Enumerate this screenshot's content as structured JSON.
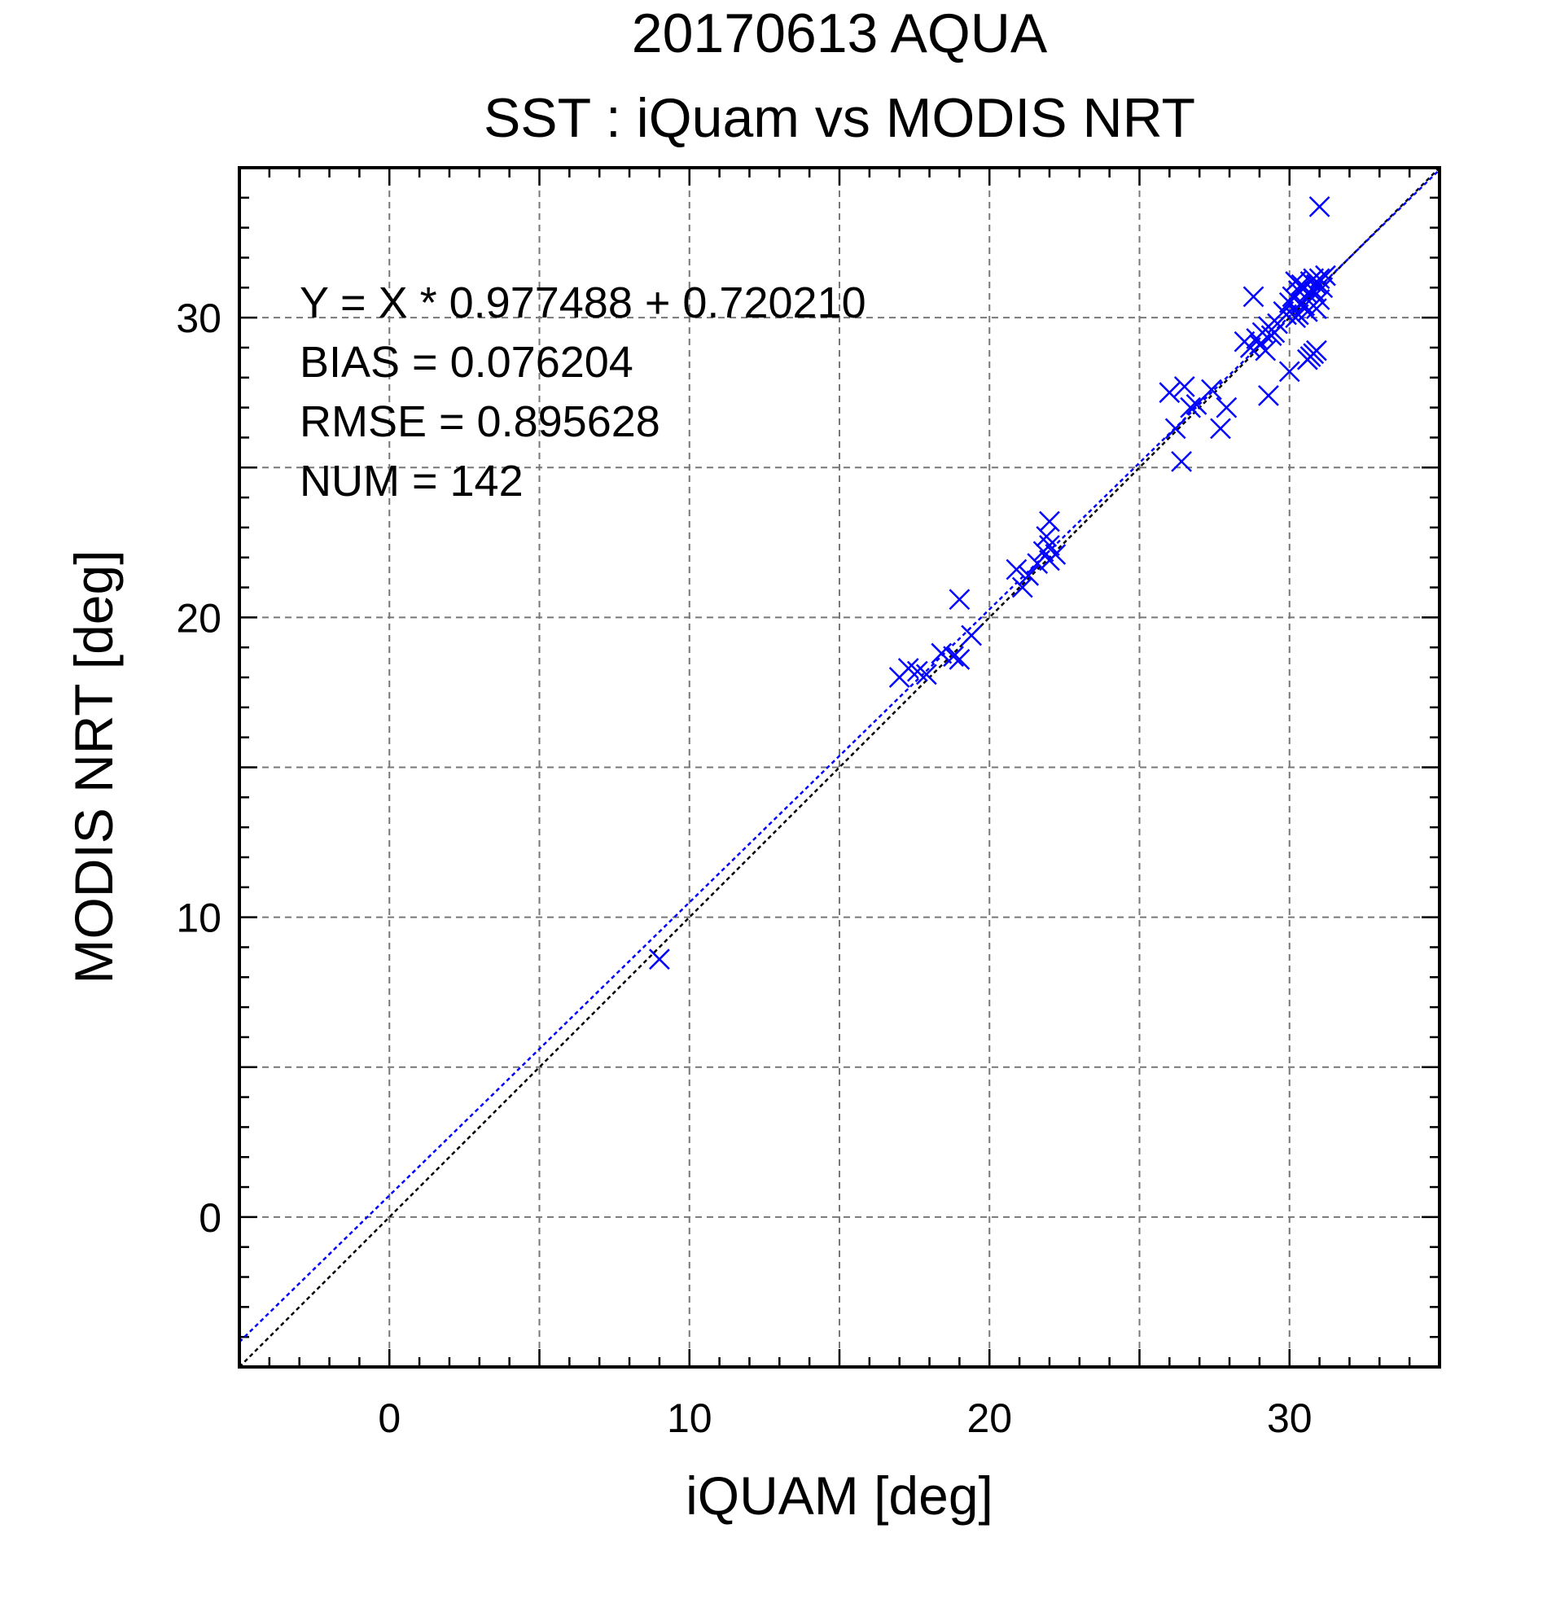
{
  "chart_data": {
    "type": "scatter",
    "title": "20170613 AQUA",
    "subtitle": "SST : iQuam vs MODIS NRT",
    "xlabel": "iQUAM [deg]",
    "ylabel": "MODIS NRT [deg]",
    "xlim": [
      -5,
      35
    ],
    "ylim": [
      -5,
      35
    ],
    "x_major_ticks": [
      0,
      10,
      20,
      30
    ],
    "y_major_ticks": [
      0,
      10,
      20,
      30
    ],
    "x_tick_labels": [
      "0",
      "10",
      "20",
      "30"
    ],
    "y_tick_labels": [
      "0",
      "10",
      "20",
      "30"
    ],
    "grid": true,
    "annotations": [
      "Y = X * 0.977488 + 0.720210",
      "BIAS = 0.076204",
      "RMSE = 0.895628",
      "NUM = 142"
    ],
    "fit_line": {
      "slope": 0.977488,
      "intercept": 0.72021,
      "color": "#0000ff"
    },
    "reference_line": {
      "slope": 1,
      "intercept": 0,
      "color": "#000000"
    },
    "marker": "x",
    "marker_color": "#0000ff",
    "points": [
      [
        9.0,
        8.6
      ],
      [
        17.0,
        18.0
      ],
      [
        17.3,
        18.3
      ],
      [
        17.6,
        18.2
      ],
      [
        17.9,
        18.1
      ],
      [
        18.4,
        18.8
      ],
      [
        18.8,
        18.7
      ],
      [
        19.0,
        18.6
      ],
      [
        19.0,
        20.6
      ],
      [
        19.4,
        19.4
      ],
      [
        20.9,
        21.6
      ],
      [
        21.1,
        21.0
      ],
      [
        21.3,
        21.4
      ],
      [
        21.6,
        21.8
      ],
      [
        21.8,
        22.2
      ],
      [
        21.9,
        22.7
      ],
      [
        22.0,
        23.2
      ],
      [
        22.0,
        21.9
      ],
      [
        22.2,
        22.1
      ],
      [
        22.0,
        22.4
      ],
      [
        26.0,
        27.5
      ],
      [
        26.2,
        26.3
      ],
      [
        26.4,
        25.2
      ],
      [
        26.5,
        27.7
      ],
      [
        26.7,
        27.0
      ],
      [
        26.9,
        27.1
      ],
      [
        27.4,
        27.6
      ],
      [
        27.7,
        26.3
      ],
      [
        27.9,
        27.0
      ],
      [
        28.5,
        29.2
      ],
      [
        28.7,
        29.0
      ],
      [
        28.9,
        29.3
      ],
      [
        28.8,
        30.7
      ],
      [
        29.0,
        29.1
      ],
      [
        29.1,
        29.5
      ],
      [
        29.2,
        28.9
      ],
      [
        29.3,
        29.7
      ],
      [
        29.4,
        29.4
      ],
      [
        29.3,
        27.4
      ],
      [
        29.6,
        29.8
      ],
      [
        29.5,
        29.5
      ],
      [
        29.8,
        30.2
      ],
      [
        30.0,
        30.5
      ],
      [
        29.9,
        30.1
      ],
      [
        30.0,
        28.2
      ],
      [
        30.1,
        30.7
      ],
      [
        30.2,
        30.0
      ],
      [
        30.3,
        30.9
      ],
      [
        30.4,
        30.5
      ],
      [
        30.5,
        31.0
      ],
      [
        30.3,
        30.1
      ],
      [
        30.6,
        30.8
      ],
      [
        30.7,
        31.2
      ],
      [
        30.5,
        30.4
      ],
      [
        30.8,
        30.9
      ],
      [
        30.9,
        31.1
      ],
      [
        31.0,
        31.3
      ],
      [
        31.1,
        31.0
      ],
      [
        30.6,
        30.2
      ],
      [
        31.0,
        30.6
      ],
      [
        30.8,
        31.3
      ],
      [
        30.4,
        31.1
      ],
      [
        30.2,
        31.2
      ],
      [
        31.2,
        31.4
      ],
      [
        30.9,
        30.3
      ],
      [
        30.6,
        28.6
      ],
      [
        30.8,
        28.8
      ],
      [
        30.7,
        28.7
      ],
      [
        30.9,
        28.9
      ],
      [
        31.0,
        33.7
      ]
    ]
  }
}
